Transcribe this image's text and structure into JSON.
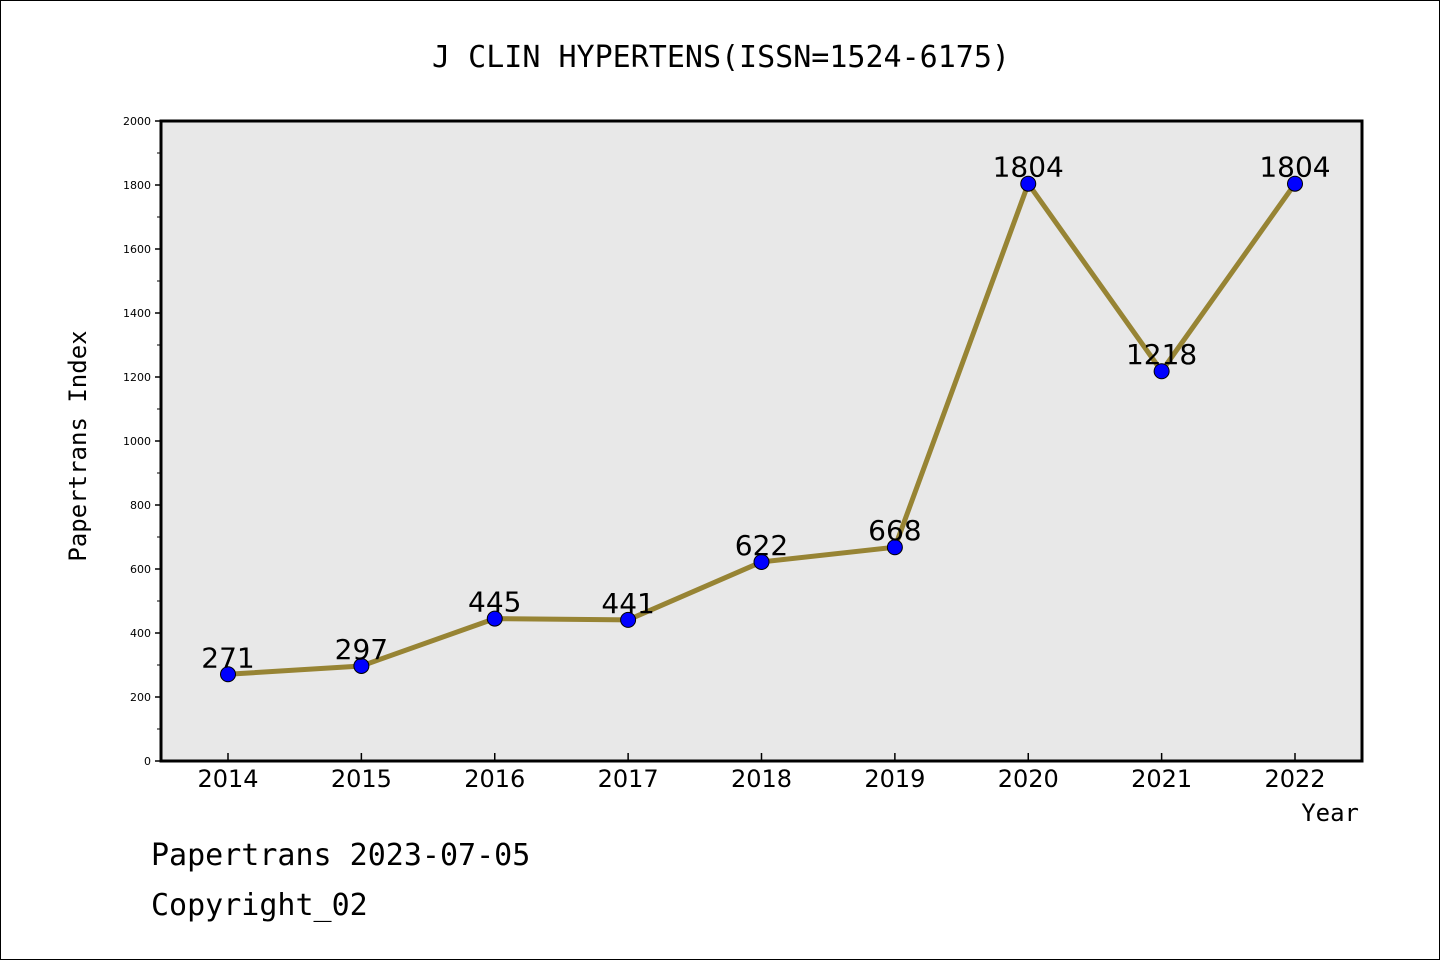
{
  "chart_data": {
    "type": "line",
    "title": "J CLIN HYPERTENS(ISSN=1524-6175)",
    "xlabel": "Year",
    "ylabel": "Papertrans Index",
    "categories": [
      "2014",
      "2015",
      "2016",
      "2017",
      "2018",
      "2019",
      "2020",
      "2021",
      "2022"
    ],
    "series": [
      {
        "values": [
          271,
          297,
          445,
          441,
          622,
          668,
          1804,
          1218,
          1804
        ]
      }
    ],
    "ylim": [
      0,
      2000
    ],
    "y_ticks": [
      "0",
      "200",
      "400",
      "600",
      "800",
      "1000",
      "1200",
      "1400",
      "1600",
      "1800",
      "2000"
    ],
    "grid": false,
    "legend": "none",
    "colors": {
      "line": "#978434",
      "marker": "#0000ff",
      "plot_bg": "#e8e8e8"
    }
  },
  "footer": {
    "date_line": "Papertrans 2023-07-05",
    "copyright": "Copyright_02"
  }
}
